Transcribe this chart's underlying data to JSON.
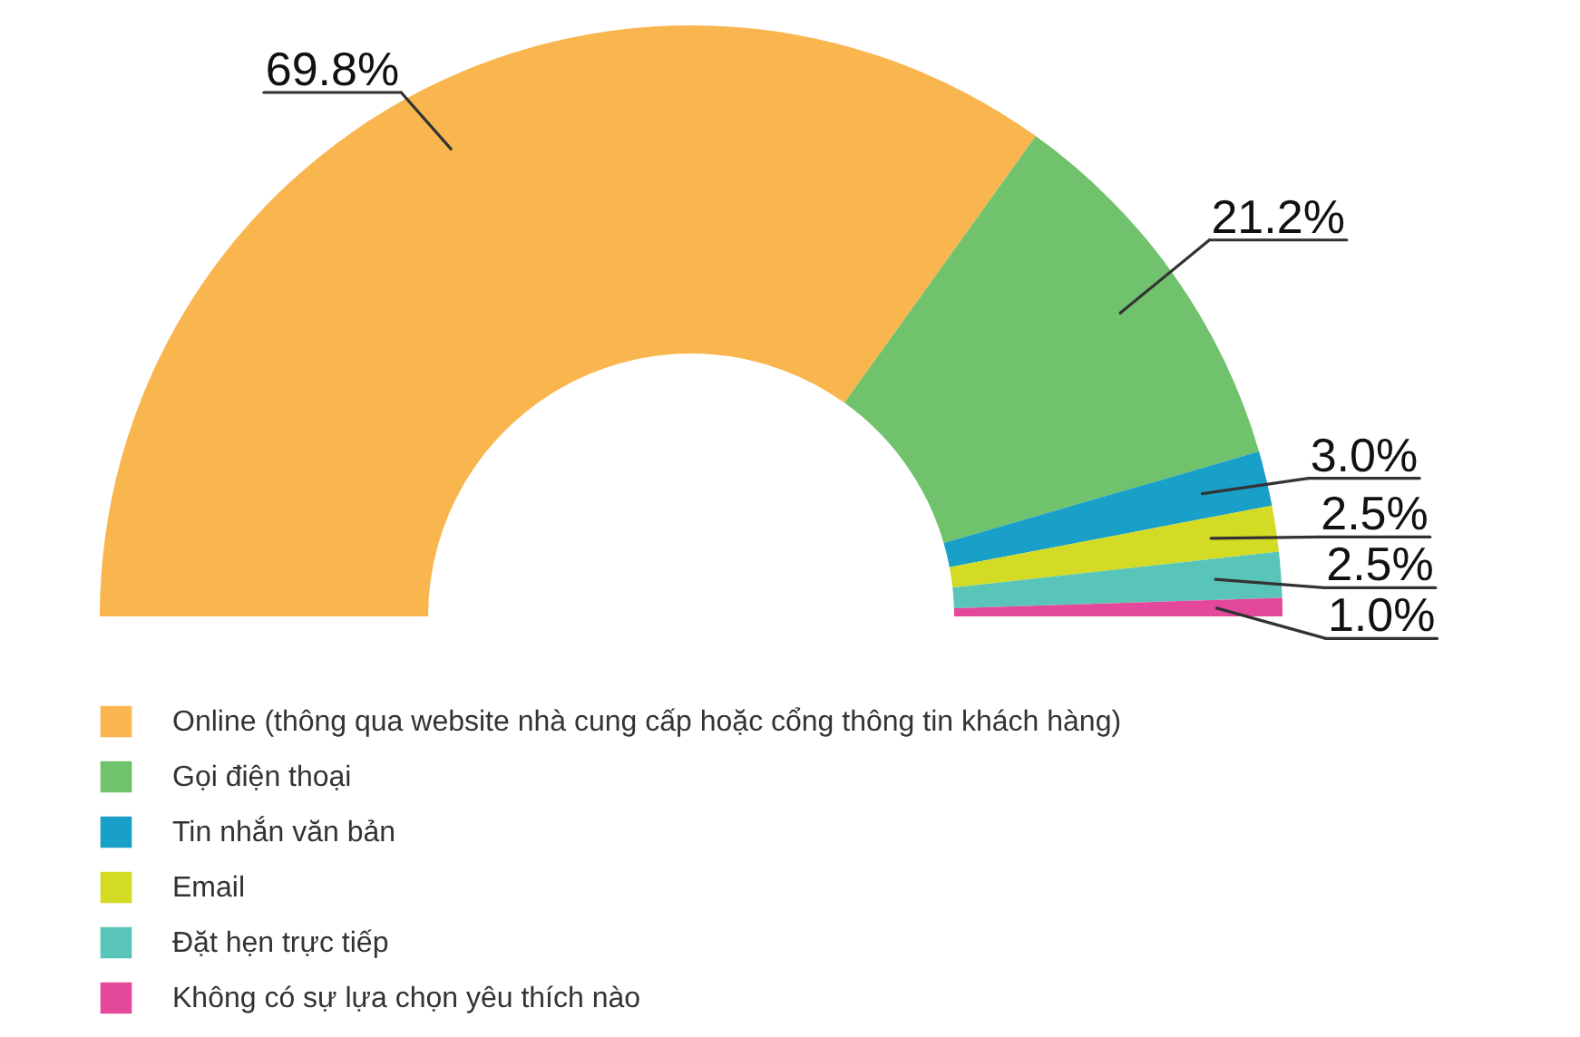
{
  "chart_data": {
    "type": "donut",
    "categories": [
      "Online (thông qua website nhà cung cấp hoặc cổng thông tin khách hàng)",
      "Gọi điện thoại",
      "Tin nhắn văn bản",
      "Email",
      "Đặt hẹn trực tiếp",
      "Không có sự lựa chọn yêu thích nào"
    ],
    "values": [
      69.8,
      21.2,
      3.0,
      2.5,
      2.5,
      1.0
    ],
    "value_labels": [
      "69.8%",
      "21.2%",
      "3.0%",
      "2.5%",
      "2.5%",
      "1.0%"
    ],
    "colors": [
      "#f9b54e",
      "#71c26c",
      "#19a0c8",
      "#d3db25",
      "#59c5b8",
      "#e4489a"
    ],
    "legend": "bottom left"
  }
}
